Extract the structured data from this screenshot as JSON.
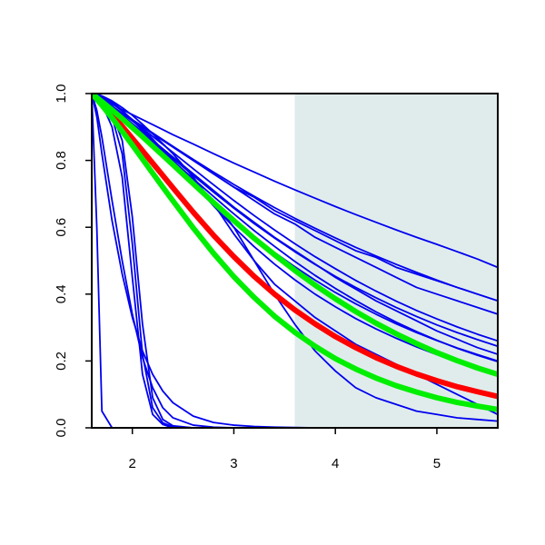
{
  "chart_data": {
    "type": "line",
    "title": "",
    "xlabel": "",
    "ylabel": "",
    "xlim": [
      1.6,
      5.6
    ],
    "ylim": [
      0.0,
      1.0
    ],
    "x_ticks": [
      2,
      3,
      4,
      5
    ],
    "x_tick_labels": [
      "2",
      "3",
      "4",
      "5"
    ],
    "y_ticks": [
      0.0,
      0.2,
      0.4,
      0.6,
      0.8,
      1.0
    ],
    "y_tick_labels": [
      "0.0",
      "0.2",
      "0.4",
      "0.6",
      "0.8",
      "1.0"
    ],
    "grid": false,
    "shaded_region": {
      "x_from": 3.6,
      "x_to": 5.6,
      "color": "#e0ecec"
    },
    "x": [
      1.6,
      1.65,
      1.7,
      1.8,
      1.9,
      2.0,
      2.1,
      2.2,
      2.3,
      2.4,
      2.6,
      2.8,
      3.0,
      3.2,
      3.4,
      3.6,
      3.8,
      4.0,
      4.2,
      4.4,
      4.6,
      4.8,
      5.0,
      5.2,
      5.4,
      5.6
    ],
    "series": [
      {
        "role": "sample",
        "color": "#0000ee",
        "values": [
          1.0,
          0.6,
          0.05,
          0.0,
          0.0,
          0.0,
          0.0,
          0.0,
          0.0,
          0.0,
          0.0,
          0.0,
          0.0,
          0.0,
          0.0,
          0.0,
          0.0,
          0.0,
          0.0,
          0.0,
          0.0,
          0.0,
          0.0,
          0.0,
          0.0,
          0.0
        ]
      },
      {
        "role": "sample",
        "color": "#0000ee",
        "values": [
          1.0,
          0.93,
          0.82,
          0.62,
          0.46,
          0.33,
          0.23,
          0.16,
          0.11,
          0.075,
          0.035,
          0.016,
          0.008,
          0.004,
          0.002,
          0.001,
          0.0,
          0.0,
          0.0,
          0.0,
          0.0,
          0.0,
          0.0,
          0.0,
          0.0,
          0.0
        ]
      },
      {
        "role": "sample",
        "color": "#0000ee",
        "values": [
          1.0,
          0.95,
          0.87,
          0.68,
          0.5,
          0.34,
          0.21,
          0.12,
          0.06,
          0.03,
          0.008,
          0.002,
          0.0,
          0.0,
          0.0,
          0.0,
          0.0,
          0.0,
          0.0,
          0.0,
          0.0,
          0.0,
          0.0,
          0.0,
          0.0,
          0.0
        ]
      },
      {
        "role": "sample",
        "color": "#0000ee",
        "values": [
          1.0,
          0.99,
          0.97,
          0.9,
          0.75,
          0.45,
          0.16,
          0.04,
          0.01,
          0.0,
          0.0,
          0.0,
          0.0,
          0.0,
          0.0,
          0.0,
          0.0,
          0.0,
          0.0,
          0.0,
          0.0,
          0.0,
          0.0,
          0.0,
          0.0,
          0.0
        ]
      },
      {
        "role": "sample",
        "color": "#0000ee",
        "values": [
          1.0,
          0.99,
          0.98,
          0.93,
          0.82,
          0.55,
          0.22,
          0.06,
          0.015,
          0.003,
          0.0,
          0.0,
          0.0,
          0.0,
          0.0,
          0.0,
          0.0,
          0.0,
          0.0,
          0.0,
          0.0,
          0.0,
          0.0,
          0.0,
          0.0,
          0.0
        ]
      },
      {
        "role": "sample",
        "color": "#0000ee",
        "values": [
          1.0,
          0.99,
          0.98,
          0.94,
          0.86,
          0.63,
          0.31,
          0.09,
          0.025,
          0.006,
          0.0,
          0.0,
          0.0,
          0.0,
          0.0,
          0.0,
          0.0,
          0.0,
          0.0,
          0.0,
          0.0,
          0.0,
          0.0,
          0.0,
          0.0,
          0.0
        ]
      },
      {
        "role": "sample",
        "color": "#0000ee",
        "values": [
          1.0,
          0.998,
          0.992,
          0.975,
          0.95,
          0.92,
          0.89,
          0.86,
          0.83,
          0.8,
          0.74,
          0.68,
          0.6,
          0.5,
          0.4,
          0.31,
          0.23,
          0.17,
          0.12,
          0.09,
          0.07,
          0.05,
          0.04,
          0.03,
          0.025,
          0.02
        ]
      },
      {
        "role": "sample",
        "color": "#0000ee",
        "values": [
          1.0,
          0.998,
          0.993,
          0.978,
          0.958,
          0.935,
          0.908,
          0.88,
          0.85,
          0.82,
          0.75,
          0.67,
          0.58,
          0.5,
          0.43,
          0.38,
          0.33,
          0.29,
          0.25,
          0.22,
          0.19,
          0.16,
          0.13,
          0.1,
          0.07,
          0.04
        ]
      },
      {
        "role": "sample",
        "color": "#0000ee",
        "values": [
          1.0,
          0.992,
          0.984,
          0.968,
          0.952,
          0.937,
          0.922,
          0.907,
          0.892,
          0.877,
          0.849,
          0.82,
          0.792,
          0.765,
          0.738,
          0.712,
          0.687,
          0.662,
          0.638,
          0.615,
          0.592,
          0.57,
          0.549,
          0.527,
          0.505,
          0.48
        ]
      },
      {
        "role": "sample",
        "color": "#0000ee",
        "values": [
          1.0,
          0.99,
          0.98,
          0.96,
          0.94,
          0.92,
          0.9,
          0.88,
          0.86,
          0.84,
          0.8,
          0.76,
          0.72,
          0.69,
          0.65,
          0.62,
          0.59,
          0.56,
          0.53,
          0.51,
          0.48,
          0.46,
          0.44,
          0.42,
          0.4,
          0.38
        ]
      },
      {
        "role": "sample",
        "color": "#0000ee",
        "values": [
          1.0,
          0.99,
          0.98,
          0.96,
          0.94,
          0.92,
          0.9,
          0.88,
          0.86,
          0.84,
          0.8,
          0.76,
          0.72,
          0.68,
          0.64,
          0.61,
          0.57,
          0.54,
          0.51,
          0.48,
          0.45,
          0.42,
          0.4,
          0.38,
          0.36,
          0.34
        ]
      },
      {
        "role": "sample",
        "color": "#0000ee",
        "values": [
          1.0,
          0.992,
          0.982,
          0.962,
          0.94,
          0.918,
          0.895,
          0.872,
          0.848,
          0.824,
          0.775,
          0.727,
          0.68,
          0.635,
          0.592,
          0.551,
          0.512,
          0.476,
          0.441,
          0.409,
          0.379,
          0.351,
          0.326,
          0.302,
          0.28,
          0.26
        ]
      },
      {
        "role": "sample",
        "color": "#0000ee",
        "values": [
          1.0,
          0.99,
          0.98,
          0.96,
          0.935,
          0.91,
          0.885,
          0.86,
          0.835,
          0.81,
          0.76,
          0.71,
          0.66,
          0.615,
          0.57,
          0.53,
          0.49,
          0.45,
          0.415,
          0.38,
          0.35,
          0.32,
          0.29,
          0.265,
          0.24,
          0.22
        ]
      },
      {
        "role": "sample",
        "color": "#0000ee",
        "values": [
          1.0,
          0.99,
          0.98,
          0.957,
          0.932,
          0.906,
          0.88,
          0.853,
          0.826,
          0.799,
          0.745,
          0.692,
          0.64,
          0.59,
          0.543,
          0.498,
          0.456,
          0.417,
          0.381,
          0.347,
          0.316,
          0.288,
          0.262,
          0.238,
          0.217,
          0.198
        ]
      },
      {
        "role": "sample",
        "color": "#0000ee",
        "values": [
          1.0,
          0.995,
          0.988,
          0.97,
          0.948,
          0.922,
          0.894,
          0.864,
          0.832,
          0.8,
          0.732,
          0.664,
          0.6,
          0.542,
          0.49,
          0.443,
          0.4,
          0.362,
          0.327,
          0.296,
          0.268,
          0.242,
          0.219,
          0.198,
          0.179,
          0.162
        ]
      },
      {
        "role": "sample",
        "color": "#0000ee",
        "values": [
          1.0,
          0.992,
          0.982,
          0.962,
          0.942,
          0.922,
          0.902,
          0.882,
          0.862,
          0.842,
          0.803,
          0.765,
          0.728,
          0.693,
          0.659,
          0.627,
          0.597,
          0.568,
          0.54,
          0.514,
          0.489,
          0.465,
          0.442,
          0.42,
          0.4,
          0.38
        ]
      },
      {
        "role": "sample",
        "color": "#0000ee",
        "values": [
          1.0,
          0.99,
          0.98,
          0.958,
          0.934,
          0.909,
          0.884,
          0.858,
          0.832,
          0.806,
          0.755,
          0.705,
          0.657,
          0.611,
          0.568,
          0.527,
          0.489,
          0.453,
          0.42,
          0.389,
          0.36,
          0.333,
          0.308,
          0.285,
          0.264,
          0.244
        ]
      },
      {
        "role": "sample",
        "color": "#0000ee",
        "values": [
          1.0,
          0.99,
          0.979,
          0.955,
          0.929,
          0.902,
          0.874,
          0.845,
          0.816,
          0.787,
          0.73,
          0.675,
          0.622,
          0.572,
          0.525,
          0.482,
          0.442,
          0.405,
          0.371,
          0.34,
          0.311,
          0.285,
          0.261,
          0.239,
          0.219,
          0.2
        ]
      },
      {
        "role": "highlight-red",
        "color": "#ff0000",
        "values": [
          1.0,
          0.985,
          0.97,
          0.937,
          0.902,
          0.866,
          0.829,
          0.792,
          0.755,
          0.718,
          0.645,
          0.576,
          0.512,
          0.453,
          0.4,
          0.353,
          0.311,
          0.273,
          0.24,
          0.21,
          0.184,
          0.161,
          0.141,
          0.123,
          0.108,
          0.094
        ]
      },
      {
        "role": "highlight-green",
        "color": "#00ee00",
        "values": [
          1.0,
          0.988,
          0.976,
          0.951,
          0.925,
          0.898,
          0.871,
          0.843,
          0.815,
          0.787,
          0.73,
          0.674,
          0.62,
          0.567,
          0.518,
          0.471,
          0.427,
          0.386,
          0.348,
          0.313,
          0.281,
          0.252,
          0.225,
          0.201,
          0.179,
          0.16
        ]
      },
      {
        "role": "highlight-green",
        "color": "#00ee00",
        "values": [
          1.0,
          0.983,
          0.965,
          0.927,
          0.887,
          0.846,
          0.804,
          0.762,
          0.72,
          0.679,
          0.598,
          0.522,
          0.452,
          0.39,
          0.334,
          0.286,
          0.244,
          0.207,
          0.176,
          0.149,
          0.126,
          0.107,
          0.09,
          0.076,
          0.065,
          0.055
        ]
      }
    ]
  }
}
